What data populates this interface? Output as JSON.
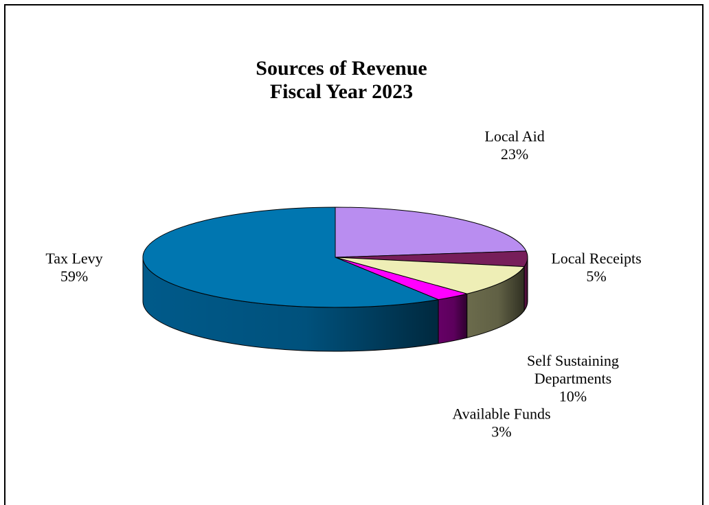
{
  "chart_data": {
    "type": "pie",
    "style": "3d",
    "title": [
      "Sources of Revenue",
      "Fiscal Year 2023"
    ],
    "slices": [
      {
        "label": [
          "Local Aid"
        ],
        "value": 23,
        "pct_label": "23%",
        "color": "#b98df0",
        "side_color": "#8a5cc4"
      },
      {
        "label": [
          "Local Receipts"
        ],
        "value": 5,
        "pct_label": "5%",
        "color": "#771e5a",
        "side_color": "#5a1243"
      },
      {
        "label": [
          "Self Sustaining",
          "Departments"
        ],
        "value": 10,
        "pct_label": "10%",
        "color": "#eeeeb6",
        "side_color": "#6b6b4c"
      },
      {
        "label": [
          "Available Funds"
        ],
        "value": 3,
        "pct_label": "3%",
        "color": "#ff00ff",
        "side_color": "#660066"
      },
      {
        "label": [
          "Tax Levy"
        ],
        "value": 59,
        "pct_label": "59%",
        "color": "#0076b0",
        "side_color": "#005a8a"
      }
    ]
  }
}
